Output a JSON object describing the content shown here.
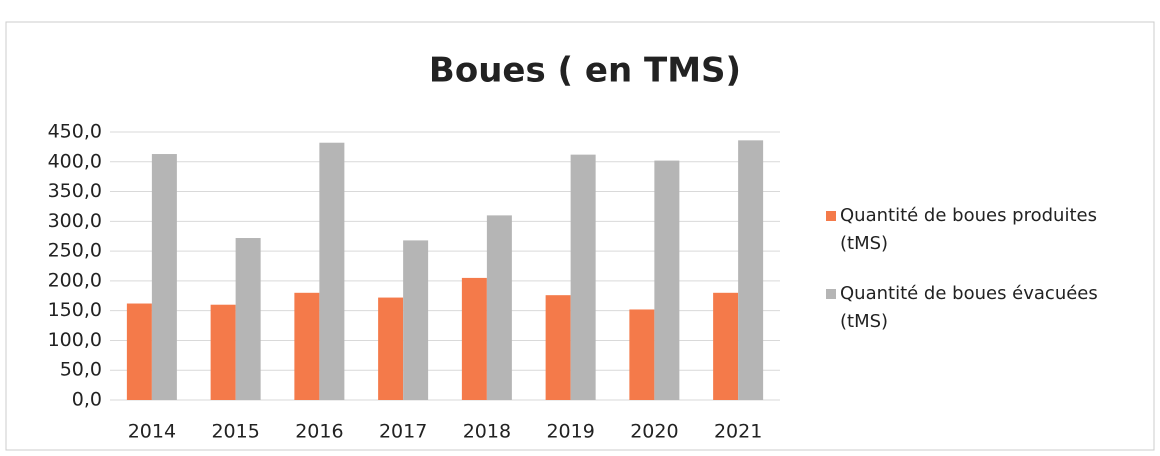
{
  "chart_data": {
    "type": "bar",
    "title": "Boues ( en TMS)",
    "categories": [
      "2014",
      "2015",
      "2016",
      "2017",
      "2018",
      "2019",
      "2020",
      "2021"
    ],
    "series": [
      {
        "name": "Quantité de boues produites (tMS)",
        "color": "#f47a4a",
        "values": [
          162,
          160,
          180,
          172,
          205,
          176,
          152,
          180
        ]
      },
      {
        "name": "Quantité de boues évacuées (tMS)",
        "color": "#b5b5b5",
        "values": [
          413,
          272,
          432,
          268,
          310,
          412,
          402,
          436
        ]
      }
    ],
    "ylim": [
      0,
      450
    ],
    "yticks": [
      {
        "value": 0,
        "label": "0,0"
      },
      {
        "value": 50,
        "label": "50,0"
      },
      {
        "value": 100,
        "label": "100,0"
      },
      {
        "value": 150,
        "label": "150,0"
      },
      {
        "value": 200,
        "label": "200,0"
      },
      {
        "value": 250,
        "label": "250,0"
      },
      {
        "value": 300,
        "label": "300,0"
      },
      {
        "value": 350,
        "label": "350,0"
      },
      {
        "value": 400,
        "label": "400,0"
      },
      {
        "value": 450,
        "label": "450,0"
      }
    ],
    "grid": true,
    "legend": "right"
  }
}
